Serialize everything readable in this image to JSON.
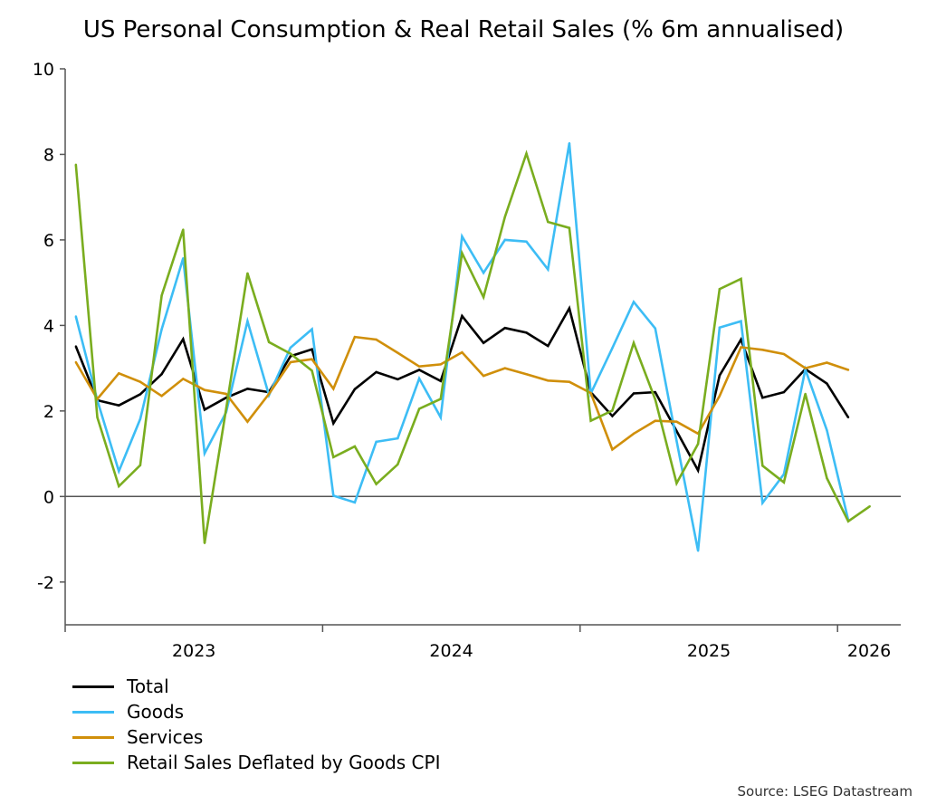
{
  "chart_data": {
    "type": "line",
    "title": "US Personal Consumption & Real Retail Sales (% 6m annualised)",
    "xlabel": "",
    "ylabel": "",
    "ylim": [
      -3,
      10
    ],
    "yticks": [
      -2,
      0,
      2,
      4,
      6,
      8,
      10
    ],
    "xlim": [
      "2023-01",
      "2026-03"
    ],
    "xtick_labels": [
      "2023",
      "2024",
      "2025",
      "2026"
    ],
    "grid": false,
    "zero_line": true,
    "legend_position": "bottom-left",
    "source": "Source: LSEG Datastream",
    "x": [
      "2023-01",
      "2023-02",
      "2023-03",
      "2023-04",
      "2023-05",
      "2023-06",
      "2023-07",
      "2023-08",
      "2023-09",
      "2023-10",
      "2023-11",
      "2023-12",
      "2024-01",
      "2024-02",
      "2024-03",
      "2024-04",
      "2024-05",
      "2024-06",
      "2024-07",
      "2024-08",
      "2024-09",
      "2024-10",
      "2024-11",
      "2024-12",
      "2025-01",
      "2025-02",
      "2025-03",
      "2025-04",
      "2025-05",
      "2025-06",
      "2025-07",
      "2025-08",
      "2025-09",
      "2025-10",
      "2025-11",
      "2025-12",
      "2026-01",
      "2026-02"
    ],
    "series": [
      {
        "name": "Total",
        "color": "#000000",
        "values": [
          3.51,
          2.25,
          2.13,
          2.39,
          2.86,
          3.68,
          2.03,
          2.31,
          2.52,
          2.44,
          3.28,
          3.44,
          1.71,
          2.51,
          2.91,
          2.74,
          2.96,
          2.7,
          4.22,
          3.59,
          3.94,
          3.83,
          3.52,
          4.4,
          2.44,
          1.88,
          2.41,
          2.44,
          1.53,
          0.61,
          2.83,
          3.67,
          2.31,
          2.44,
          2.98,
          2.64,
          1.85,
          null
        ]
      },
      {
        "name": "Goods",
        "color": "#3DBDF5",
        "values": [
          4.21,
          2.25,
          0.59,
          1.81,
          3.91,
          5.57,
          1.01,
          1.97,
          4.1,
          2.37,
          3.48,
          3.91,
          0.02,
          -0.14,
          1.28,
          1.36,
          2.76,
          1.85,
          6.08,
          5.23,
          6.0,
          5.96,
          5.31,
          8.26,
          2.41,
          3.47,
          4.55,
          3.93,
          1.3,
          -1.27,
          3.95,
          4.1,
          -0.15,
          0.52,
          2.97,
          1.55,
          -0.55,
          null
        ]
      },
      {
        "name": "Services",
        "color": "#D08F0A",
        "values": [
          3.14,
          2.28,
          2.88,
          2.68,
          2.35,
          2.75,
          2.49,
          2.4,
          1.75,
          2.4,
          3.14,
          3.21,
          2.52,
          3.73,
          3.67,
          3.36,
          3.04,
          3.09,
          3.37,
          2.82,
          3.0,
          2.86,
          2.71,
          2.68,
          2.42,
          1.1,
          1.47,
          1.77,
          1.75,
          1.47,
          2.35,
          3.49,
          3.43,
          3.33,
          3.0,
          3.13,
          2.96,
          null
        ]
      },
      {
        "name": "Retail Sales Deflated by Goods CPI",
        "color": "#7AAD1F",
        "values": [
          7.76,
          1.85,
          0.24,
          0.73,
          4.7,
          6.24,
          -1.09,
          2.05,
          5.22,
          3.61,
          3.34,
          2.94,
          0.92,
          1.17,
          0.29,
          0.75,
          2.05,
          2.28,
          5.69,
          4.66,
          6.54,
          8.02,
          6.42,
          6.28,
          1.77,
          2.01,
          3.59,
          2.27,
          0.31,
          1.23,
          4.85,
          5.09,
          0.72,
          0.33,
          2.4,
          0.43,
          -0.58,
          -0.23
        ]
      }
    ]
  }
}
